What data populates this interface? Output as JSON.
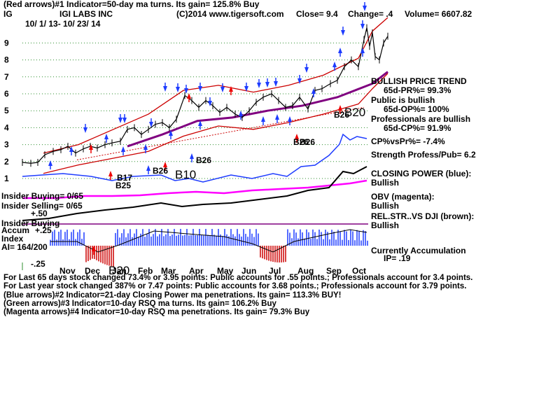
{
  "header": {
    "line1": "(Red arrows)#1 Indicator=50-day ma turns. Its gain= 125.8% Buy",
    "ticker": "IG",
    "company": "IGI LABS INC",
    "copyright": "(C)2014 www.tigersoft.com",
    "close": "Close=  9.4",
    "change": "Change= .4",
    "volume": "Volume= 6607.82",
    "dates": "10/ 1/ 13- 10/ 23/ 14"
  },
  "right_panel": {
    "trend": "BULLISH PRICE TREND",
    "pr": "65d-PR%= 99.3%",
    "public": "Public is bullish",
    "op": "65d-OP%= 100%",
    "pros": "Professionals are bullish",
    "cp": "65d-CP%= 91.9%",
    "cpvspr": "CP%vsPr%= -7.4%",
    "strength": "Strength Profess/Pub= 6.2",
    "closing_power": "CLOSING POWER (blue):",
    "closing_power_state": "Bullish",
    "obv": "OBV (magenta):",
    "obv_state": "Bullish",
    "relstr": "REL.STR..VS DJI (brown):",
    "relstr_state": "Bullish",
    "accum": "Currently Accumulation",
    "ip": "IP= .19"
  },
  "left_panel": {
    "insider_buying": "Insider Buying= 0/65",
    "insider_selling": "Insider Selling= 0/65",
    "plus50": "+.50",
    "insider_buying2": "Insider Buying",
    "accum": "Accum",
    "plus25": "+.25",
    "index": "Index",
    "ai": "AI= 164/200",
    "minus25": "-.25"
  },
  "signals": {
    "b17": "B17",
    "b25": "B25",
    "b20a": "B20",
    "b26a": "B26",
    "b10": "B10",
    "b26b": "B26",
    "b26c": "B26",
    "b26d": "B26",
    "b26e": "B26",
    "b20b": "B20"
  },
  "footer": {
    "line1": "For Last 65 days stock changed  73.4% or  3.95 points:  Public accounts for  .55 points.;  Professionals account for  3.4 points.",
    "line2": "For Last year stock changed  387% or  7.47 points:  Public accounts for  3.68 points.;  Professionals account for  3.79 points.",
    "line3": "(Blue arrows)#2 Indicator=21-day Closing Power ma penetrations. Its gain= 113.3% BUY!",
    "line4": "(Green arrows)#3 Indicator=10-day RSQ ma turns. Its gain= 106.2% Buy",
    "line5": "(Magenta arrows)#4 Indicator=10-day RSQ ma penetrations. Its gain= 79.3% Buy"
  },
  "chart_data": {
    "type": "line",
    "x_ticks": [
      "Nov",
      "Dec",
      "Jan",
      "Feb",
      "Mar",
      "Apr",
      "May",
      "Jun",
      "Jul",
      "Aug",
      "Sep",
      "Oct"
    ],
    "y_ticks": [
      1,
      2,
      3,
      4,
      5,
      6,
      7,
      8,
      9
    ],
    "ylim": [
      0.5,
      10
    ],
    "grid": true,
    "series": [
      {
        "kind": "price_close",
        "color": "#000000",
        "x": [
          0,
          12,
          22,
          32,
          44,
          55,
          65,
          76,
          87,
          97,
          107,
          118,
          128,
          140,
          150,
          160,
          170,
          180,
          190,
          200,
          210,
          220,
          232,
          242,
          252,
          262,
          272,
          282,
          292,
          304,
          314,
          324,
          334,
          344,
          356,
          366,
          376,
          386,
          396,
          408,
          418,
          428,
          440,
          450,
          460,
          470,
          480,
          488,
          492,
          496,
          500,
          504,
          510,
          516,
          522
        ],
        "y": [
          1.95,
          1.9,
          1.95,
          2.4,
          2.6,
          2.7,
          2.9,
          2.5,
          2.75,
          2.9,
          2.8,
          3.0,
          3.1,
          3.2,
          3.9,
          4.0,
          3.6,
          3.9,
          4.2,
          4.3,
          4.0,
          4.5,
          5.9,
          5.6,
          5.2,
          5.6,
          5.3,
          4.9,
          5.2,
          4.8,
          4.6,
          5.0,
          5.5,
          5.8,
          6.0,
          5.6,
          5.2,
          5.3,
          5.8,
          5.1,
          6.2,
          6.3,
          6.6,
          6.8,
          7.6,
          8.0,
          7.6,
          9.2,
          9.9,
          8.8,
          9.6,
          8.2,
          8.0,
          9.0,
          9.4
        ]
      },
      {
        "kind": "ma_purple",
        "color": "#800080",
        "x": [
          150,
          200,
          250,
          300,
          350,
          400,
          450,
          500,
          522
        ],
        "y": [
          2.9,
          3.6,
          4.4,
          4.6,
          5.0,
          5.3,
          5.8,
          6.6,
          7.3
        ]
      },
      {
        "kind": "band_upper",
        "color": "#cc0000",
        "x": [
          30,
          80,
          130,
          180,
          230,
          280,
          330,
          380,
          430,
          480,
          500,
          522
        ],
        "y": [
          2.5,
          3.0,
          3.9,
          4.8,
          6.2,
          6.5,
          6.1,
          6.5,
          7.1,
          8.1,
          9.7,
          10.5
        ]
      },
      {
        "kind": "band_lower",
        "color": "#cc0000",
        "x": [
          30,
          80,
          130,
          180,
          230,
          280,
          330,
          380,
          430,
          480,
          500,
          522
        ],
        "y": [
          1.3,
          1.8,
          2.2,
          2.6,
          3.5,
          4.1,
          3.9,
          4.3,
          4.8,
          5.4,
          6.3,
          7.2
        ]
      }
    ]
  }
}
